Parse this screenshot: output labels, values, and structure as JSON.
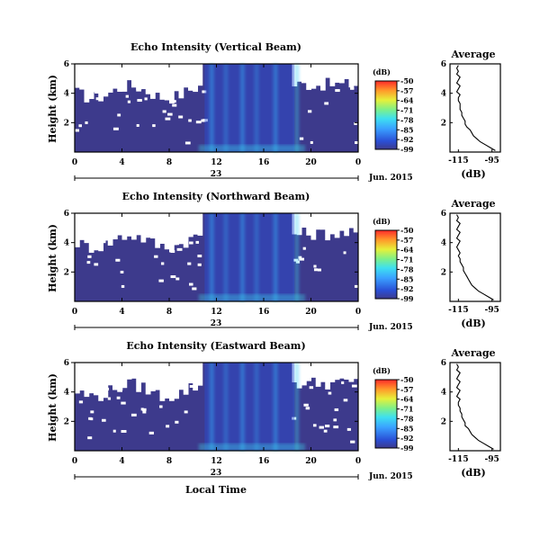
{
  "chart_data": [
    {
      "type": "heatmap",
      "title": "Echo Intensity (Vertical Beam)",
      "ylabel": "Height (km)",
      "x_ticks": [
        "0",
        "4",
        "8",
        "12",
        "16",
        "20",
        "0"
      ],
      "y_ticks": [
        "6",
        "4",
        "2"
      ],
      "xlim": [
        0,
        24
      ],
      "ylim": [
        0,
        6
      ],
      "date_day": "23",
      "date_label": "Jun. 2015",
      "colorbar": {
        "unit": "(dB)",
        "ticks": [
          "-50",
          "-57",
          "-64",
          "-71",
          "-78",
          "-85",
          "-92",
          "-99"
        ],
        "range": [
          -99,
          -50
        ]
      },
      "profile": {
        "title": "Average",
        "xlabel": "(dB)",
        "x_ticks": [
          "-115",
          "-95"
        ],
        "y_ticks": [
          "6",
          "4",
          "2"
        ],
        "xlim": [
          -120,
          -90
        ],
        "ylim": [
          0,
          6
        ],
        "heights": [
          0.1,
          0.3,
          0.5,
          0.7,
          0.9,
          1.1,
          1.3,
          1.5,
          1.7,
          1.9,
          2.1,
          2.3,
          2.5,
          2.7,
          2.9,
          3.1,
          3.3,
          3.5,
          3.7,
          3.9,
          4.1,
          4.3,
          4.5,
          4.7,
          4.9,
          5.1,
          5.3,
          5.5,
          5.7,
          5.9
        ],
        "values": [
          -93,
          -96,
          -99,
          -102,
          -104,
          -106,
          -107,
          -108,
          -110,
          -111,
          -111,
          -112,
          -113,
          -113,
          -114,
          -114,
          -114,
          -115,
          -115,
          -114,
          -116,
          -115,
          -114,
          -116,
          -115,
          -114,
          -116,
          -115,
          -116,
          -115
        ]
      }
    },
    {
      "type": "heatmap",
      "title": "Echo Intensity (Northward Beam)",
      "ylabel": "Height (km)",
      "x_ticks": [
        "0",
        "4",
        "8",
        "12",
        "16",
        "20",
        "0"
      ],
      "y_ticks": [
        "6",
        "4",
        "2"
      ],
      "xlim": [
        0,
        24
      ],
      "ylim": [
        0,
        6
      ],
      "date_day": "23",
      "date_label": "Jun. 2015",
      "colorbar": {
        "unit": "(dB)",
        "ticks": [
          "-50",
          "-57",
          "-64",
          "-71",
          "-78",
          "-85",
          "-92",
          "-99"
        ],
        "range": [
          -99,
          -50
        ]
      },
      "profile": {
        "title": "Average",
        "xlabel": "(dB)",
        "x_ticks": [
          "-115",
          "-95"
        ],
        "y_ticks": [
          "6",
          "4",
          "2"
        ],
        "xlim": [
          -120,
          -90
        ],
        "ylim": [
          0,
          6
        ],
        "heights": [
          0.1,
          0.3,
          0.5,
          0.7,
          0.9,
          1.1,
          1.3,
          1.5,
          1.7,
          1.9,
          2.1,
          2.3,
          2.5,
          2.7,
          2.9,
          3.1,
          3.3,
          3.5,
          3.7,
          3.9,
          4.1,
          4.3,
          4.5,
          4.7,
          4.9,
          5.1,
          5.3,
          5.5,
          5.7,
          5.9
        ],
        "values": [
          -94,
          -97,
          -100,
          -103,
          -105,
          -107,
          -108,
          -109,
          -110,
          -111,
          -112,
          -112,
          -113,
          -114,
          -114,
          -115,
          -114,
          -115,
          -116,
          -115,
          -114,
          -116,
          -115,
          -114,
          -116,
          -115,
          -114,
          -116,
          -115,
          -116
        ]
      }
    },
    {
      "type": "heatmap",
      "title": "Echo Intensity (Eastward Beam)",
      "ylabel": "Height (km)",
      "xlabel": "Local Time",
      "x_ticks": [
        "0",
        "4",
        "8",
        "12",
        "16",
        "20",
        "0"
      ],
      "y_ticks": [
        "6",
        "4",
        "2"
      ],
      "xlim": [
        0,
        24
      ],
      "ylim": [
        0,
        6
      ],
      "date_day": "23",
      "date_label": "Jun. 2015",
      "colorbar": {
        "unit": "(dB)",
        "ticks": [
          "-50",
          "-57",
          "-64",
          "-71",
          "-78",
          "-85",
          "-92",
          "-99"
        ],
        "range": [
          -99,
          -50
        ]
      },
      "profile": {
        "title": "Average",
        "xlabel": "(dB)",
        "x_ticks": [
          "-115",
          "-95"
        ],
        "y_ticks": [
          "6",
          "4",
          "2"
        ],
        "xlim": [
          -120,
          -90
        ],
        "ylim": [
          0,
          6
        ],
        "heights": [
          0.1,
          0.3,
          0.5,
          0.7,
          0.9,
          1.1,
          1.3,
          1.5,
          1.7,
          1.9,
          2.1,
          2.3,
          2.5,
          2.7,
          2.9,
          3.1,
          3.3,
          3.5,
          3.7,
          3.9,
          4.1,
          4.3,
          4.5,
          4.7,
          4.9,
          5.1,
          5.3,
          5.5,
          5.7,
          5.9
        ],
        "values": [
          -94,
          -97,
          -100,
          -103,
          -105,
          -107,
          -108,
          -109,
          -111,
          -111,
          -112,
          -113,
          -113,
          -114,
          -114,
          -115,
          -115,
          -114,
          -116,
          -115,
          -114,
          -116,
          -115,
          -114,
          -116,
          -115,
          -114,
          -116,
          -115,
          -116
        ]
      }
    }
  ]
}
